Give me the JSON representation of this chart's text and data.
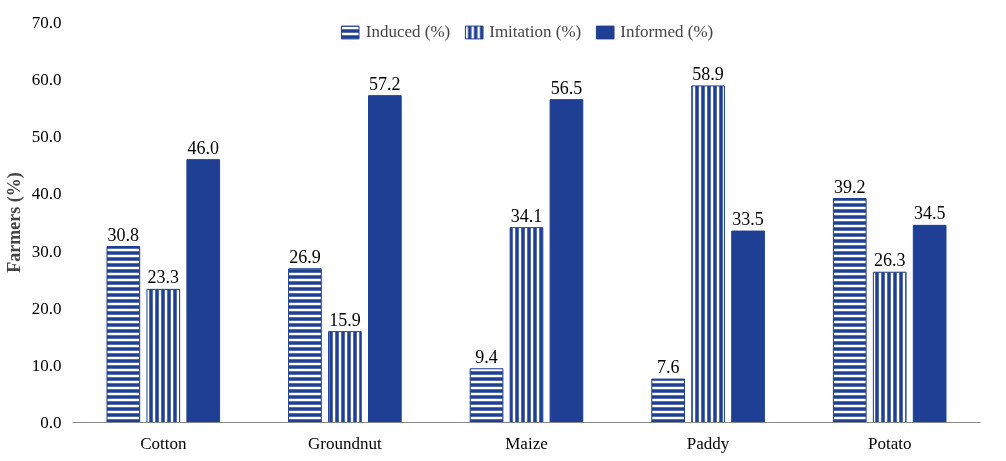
{
  "chart_data": {
    "type": "bar",
    "ylabel": "Farmers (%)",
    "categories": [
      "Cotton",
      "Groundnut",
      "Maize",
      "Paddy",
      "Potato"
    ],
    "series": [
      {
        "name": "Induced (%)",
        "color": "#1f3f94",
        "values": [
          30.8,
          26.9,
          9.4,
          7.6,
          39.2
        ]
      },
      {
        "name": "Imitation (%)",
        "color": "#1f3f94",
        "values": [
          23.3,
          15.9,
          34.1,
          58.9,
          26.3
        ]
      },
      {
        "name": "Informed (%)",
        "color": "#1f3f94",
        "values": [
          46.0,
          57.2,
          56.5,
          33.5,
          34.5
        ],
        "value_labels": [
          "46.0",
          "57.2",
          "56.5",
          "33.5",
          "34.5"
        ]
      }
    ],
    "ylim": [
      0,
      70
    ],
    "yticks": [
      {
        "value": 0,
        "label": "0.0"
      },
      {
        "value": 10,
        "label": "10.0"
      },
      {
        "value": 20,
        "label": "20.0"
      },
      {
        "value": 30,
        "label": "30.0"
      },
      {
        "value": 40,
        "label": "40.0"
      },
      {
        "value": 50,
        "label": "50.0"
      },
      {
        "value": 60,
        "label": "60.0"
      },
      {
        "value": 70,
        "label": "70.0"
      }
    ],
    "data_labels": true,
    "grid": false,
    "legend": "top"
  }
}
